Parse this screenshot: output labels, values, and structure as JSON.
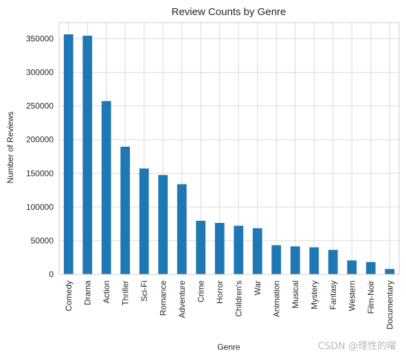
{
  "chart_data": {
    "type": "bar",
    "title": "Review Counts by Genre",
    "xlabel": "Genre",
    "ylabel": "Number of Reviews",
    "categories": [
      "Comedy",
      "Drama",
      "Action",
      "Thriller",
      "Sci-Fi",
      "Romance",
      "Adventure",
      "Crime",
      "Horror",
      "Children's",
      "War",
      "Animation",
      "Musical",
      "Mystery",
      "Fantasy",
      "Western",
      "Film-Noir",
      "Documentary"
    ],
    "values": [
      356580,
      354529,
      257457,
      189680,
      157294,
      147523,
      133953,
      79541,
      76386,
      72186,
      68527,
      43293,
      41533,
      40178,
      36301,
      20683,
      18261,
      7910
    ],
    "yticks": [
      "0",
      "50000",
      "100000",
      "150000",
      "200000",
      "250000",
      "300000",
      "350000"
    ],
    "ylim": [
      0,
      374000
    ],
    "grid": true,
    "legend": "none",
    "bar_color": "#1f77b4"
  },
  "watermark": "CSDN @理性的曜"
}
